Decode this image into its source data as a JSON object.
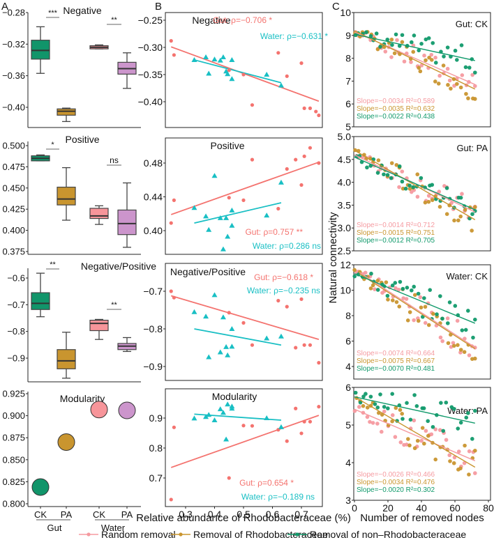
{
  "panel_labels": {
    "a": "A",
    "b": "B",
    "c": "C"
  },
  "colors": {
    "gut_ck": "#11956a",
    "gut_pa": "#c9952f",
    "water_ck": "#f7959a",
    "water_pa": "#cc95cc",
    "gut_line": "#f4736f",
    "water_line": "#19bfc4",
    "random": "#f59aa0",
    "rhodo": "#c9952f",
    "nonrhodo": "#119a6b"
  },
  "chart_data": [
    {
      "id": "A1",
      "type": "box",
      "title": "Negative",
      "ylim": [
        -0.42,
        -0.28
      ],
      "yticks": [
        -0.28,
        -0.32,
        -0.36,
        -0.4
      ],
      "ytick_labels": [
        "−0.28",
        "−0.32",
        "−0.36",
        "−0.40"
      ],
      "groups": [
        {
          "name": "Gut CK",
          "min": -0.298,
          "q1": -0.339,
          "median": -0.328,
          "q3": -0.315,
          "max": -0.298,
          "low": -0.357
        },
        {
          "name": "Gut PA",
          "min": -0.418,
          "q1": -0.41,
          "median": -0.405,
          "q3": -0.402,
          "max": -0.401
        },
        {
          "name": "Water CK",
          "min": -0.326,
          "q1": -0.326,
          "median": -0.324,
          "q3": -0.322,
          "max": -0.321
        },
        {
          "name": "Water PA",
          "min": -0.376,
          "q1": -0.358,
          "median": -0.351,
          "q3": -0.343,
          "max": -0.331
        }
      ],
      "significance": [
        {
          "pair": "Gut",
          "label": "***"
        },
        {
          "pair": "Water",
          "label": "**"
        }
      ]
    },
    {
      "id": "A2",
      "type": "box",
      "title": "Positive",
      "ylim": [
        0.375,
        0.5
      ],
      "yticks": [
        0.5,
        0.475,
        0.45,
        0.425,
        0.4,
        0.375
      ],
      "ytick_labels": [
        "0.500",
        "0.475",
        "0.450",
        "0.425",
        "0.400",
        "0.375"
      ],
      "groups": [
        {
          "name": "Gut CK",
          "low": 0.482,
          "q1": 0.482,
          "median": 0.485,
          "q3": 0.488,
          "high": 0.489
        },
        {
          "name": "Gut PA",
          "low": 0.412,
          "q1": 0.43,
          "median": 0.437,
          "q3": 0.451,
          "high": 0.474
        },
        {
          "name": "Water CK",
          "low": 0.407,
          "q1": 0.414,
          "median": 0.417,
          "q3": 0.426,
          "high": 0.429
        },
        {
          "name": "Water PA",
          "low": 0.38,
          "q1": 0.395,
          "median": 0.408,
          "q3": 0.424,
          "high": 0.456
        }
      ],
      "significance": [
        {
          "pair": "Gut",
          "label": "*"
        },
        {
          "pair": "Water",
          "label": "ns"
        }
      ]
    },
    {
      "id": "A3",
      "type": "box",
      "title": "Negative/Positive",
      "ylim": [
        -0.97,
        -0.56
      ],
      "yticks": [
        -0.6,
        -0.7,
        -0.8,
        -0.9
      ],
      "ytick_labels": [
        "−0.6",
        "−0.7",
        "−0.8",
        "−0.9"
      ],
      "groups": [
        {
          "name": "Gut CK",
          "low": -0.745,
          "q1": -0.718,
          "median": -0.695,
          "q3": -0.655,
          "high": -0.582
        },
        {
          "name": "Gut PA",
          "low": -0.975,
          "q1": -0.94,
          "median": -0.91,
          "q3": -0.868,
          "high": -0.803
        },
        {
          "name": "Water CK",
          "low": -0.83,
          "q1": -0.797,
          "median": -0.77,
          "q3": -0.758,
          "high": -0.755
        },
        {
          "name": "Water PA",
          "low": -0.875,
          "q1": -0.868,
          "median": -0.855,
          "q3": -0.845,
          "high": -0.823
        }
      ],
      "significance": [
        {
          "pair": "Gut",
          "label": "**"
        },
        {
          "pair": "Water",
          "label": "**"
        }
      ]
    },
    {
      "id": "A4",
      "type": "scatter",
      "title": "Modularity",
      "ylim": [
        0.8,
        0.925
      ],
      "yticks": [
        0.925,
        0.9,
        0.875,
        0.85,
        0.825,
        0.8
      ],
      "ytick_labels": [
        "0.925",
        "0.900",
        "0.875",
        "0.850",
        "0.825",
        "0.800"
      ],
      "groups": [
        {
          "name": "Gut CK",
          "value": 0.819
        },
        {
          "name": "Gut PA",
          "value": 0.87
        },
        {
          "name": "Water CK",
          "value": 0.907
        },
        {
          "name": "Water PA",
          "value": 0.906
        }
      ],
      "xtick_labels": [
        "CK",
        "PA",
        "CK",
        "PA"
      ],
      "xgroup_labels": [
        "Gut",
        "Water"
      ]
    },
    {
      "id": "B1",
      "type": "scatter",
      "title": "Negative",
      "xlim": [
        0.245,
        0.765
      ],
      "ylim": [
        -0.44,
        -0.24
      ],
      "yticks": [
        -0.25,
        -0.3,
        -0.35,
        -0.4
      ],
      "ytick_labels": [
        "−0.25",
        "−0.30",
        "−0.35",
        "−0.40"
      ],
      "annotations": [
        "Gut: ρ=−0.706 *",
        "Water: ρ=−0.631 *"
      ],
      "gut": {
        "points": [
          [
            0.25,
            -0.288
          ],
          [
            0.26,
            -0.314
          ],
          [
            0.45,
            -0.342
          ],
          [
            0.5,
            -0.35
          ],
          [
            0.53,
            -0.406
          ],
          [
            0.62,
            -0.31
          ],
          [
            0.65,
            -0.353
          ],
          [
            0.7,
            -0.329
          ],
          [
            0.71,
            -0.412
          ],
          [
            0.73,
            -0.412
          ],
          [
            0.75,
            -0.418
          ],
          [
            0.76,
            -0.425
          ]
        ],
        "fit": [
          [
            0.25,
            -0.299
          ],
          [
            0.76,
            -0.399
          ]
        ]
      },
      "water": {
        "points": [
          [
            0.33,
            -0.323
          ],
          [
            0.37,
            -0.318
          ],
          [
            0.38,
            -0.348
          ],
          [
            0.4,
            -0.322
          ],
          [
            0.42,
            -0.324
          ],
          [
            0.43,
            -0.318
          ],
          [
            0.44,
            -0.344
          ],
          [
            0.445,
            -0.349
          ],
          [
            0.46,
            -0.323
          ],
          [
            0.46,
            -0.358
          ],
          [
            0.58,
            -0.35
          ],
          [
            0.63,
            -0.37
          ]
        ],
        "fit": [
          [
            0.33,
            -0.323
          ],
          [
            0.63,
            -0.365
          ]
        ]
      }
    },
    {
      "id": "B2",
      "type": "scatter",
      "title": "Positive",
      "xlim": [
        0.245,
        0.765
      ],
      "ylim": [
        0.375,
        0.505
      ],
      "yticks": [
        0.48,
        0.44,
        0.4
      ],
      "ytick_labels": [
        "0.48",
        "0.44",
        "0.40"
      ],
      "annotations": [
        "Gut: ρ=0.757 **",
        "Water: ρ=0.286 ns"
      ],
      "gut": {
        "points": [
          [
            0.25,
            0.409
          ],
          [
            0.26,
            0.436
          ],
          [
            0.45,
            0.439
          ],
          [
            0.5,
            0.436
          ],
          [
            0.53,
            0.484
          ],
          [
            0.62,
            0.426
          ],
          [
            0.65,
            0.473
          ],
          [
            0.68,
            0.484
          ],
          [
            0.7,
            0.454
          ],
          [
            0.71,
            0.488
          ],
          [
            0.73,
            0.498
          ],
          [
            0.76,
            0.48
          ]
        ],
        "fit": [
          [
            0.25,
            0.419
          ],
          [
            0.76,
            0.481
          ]
        ]
      },
      "water": {
        "points": [
          [
            0.33,
            0.427
          ],
          [
            0.37,
            0.417
          ],
          [
            0.38,
            0.401
          ],
          [
            0.4,
            0.465
          ],
          [
            0.42,
            0.415
          ],
          [
            0.43,
            0.378
          ],
          [
            0.44,
            0.415
          ],
          [
            0.445,
            0.393
          ],
          [
            0.46,
            0.424
          ],
          [
            0.46,
            0.406
          ],
          [
            0.58,
            0.418
          ],
          [
            0.63,
            0.457
          ]
        ],
        "fit": [
          [
            0.33,
            0.409
          ],
          [
            0.63,
            0.433
          ]
        ]
      }
    },
    {
      "id": "B3",
      "type": "scatter",
      "title": "Negative/Positive",
      "xlim": [
        0.245,
        0.765
      ],
      "ylim": [
        -0.95,
        -0.63
      ],
      "yticks": [
        -0.7,
        -0.8,
        -0.9
      ],
      "ytick_labels": [
        "−0.7",
        "−0.8",
        "−0.9"
      ],
      "annotations": [
        "Gut: ρ=−0.618 *",
        "Water: ρ=−0.235 ns"
      ],
      "gut": {
        "points": [
          [
            0.25,
            -0.7
          ],
          [
            0.26,
            -0.717
          ],
          [
            0.45,
            -0.757
          ],
          [
            0.5,
            -0.784
          ],
          [
            0.53,
            -0.843
          ],
          [
            0.62,
            -0.725
          ],
          [
            0.65,
            -0.741
          ],
          [
            0.68,
            -0.85
          ],
          [
            0.7,
            -0.721
          ],
          [
            0.71,
            -0.843
          ],
          [
            0.73,
            -0.843
          ],
          [
            0.76,
            -0.89
          ]
        ],
        "fit": [
          [
            0.25,
            -0.712
          ],
          [
            0.76,
            -0.828
          ]
        ]
      },
      "water": {
        "points": [
          [
            0.33,
            -0.755
          ],
          [
            0.37,
            -0.767
          ],
          [
            0.38,
            -0.875
          ],
          [
            0.4,
            -0.71
          ],
          [
            0.42,
            -0.862
          ],
          [
            0.43,
            -0.769
          ],
          [
            0.44,
            -0.848
          ],
          [
            0.445,
            -0.87
          ],
          [
            0.46,
            -0.8
          ],
          [
            0.46,
            -0.847
          ],
          [
            0.58,
            -0.825
          ],
          [
            0.63,
            -0.82
          ]
        ],
        "fit": [
          [
            0.33,
            -0.8
          ],
          [
            0.63,
            -0.843
          ]
        ]
      }
    },
    {
      "id": "B4",
      "type": "scatter",
      "title": "Modularity",
      "xlim": [
        0.245,
        0.765
      ],
      "ylim": [
        0.62,
        0.98
      ],
      "yticks": [
        0.9,
        0.8,
        0.7
      ],
      "ytick_labels": [
        "0.9",
        "0.8",
        "0.7"
      ],
      "annotations": [
        "Gut: ρ=0.654 *",
        "Water: ρ=−0.189 ns"
      ],
      "gut": {
        "points": [
          [
            0.25,
            0.628
          ],
          [
            0.26,
            0.869
          ],
          [
            0.45,
            0.7
          ],
          [
            0.5,
            0.875
          ],
          [
            0.53,
            0.874
          ],
          [
            0.62,
            0.861
          ],
          [
            0.65,
            0.823
          ],
          [
            0.68,
            0.932
          ],
          [
            0.7,
            0.849
          ],
          [
            0.71,
            0.888
          ],
          [
            0.73,
            0.888
          ],
          [
            0.76,
            0.938
          ]
        ],
        "fit": [
          [
            0.25,
            0.735
          ],
          [
            0.76,
            0.909
          ]
        ]
      },
      "water": {
        "points": [
          [
            0.33,
            0.899
          ],
          [
            0.37,
            0.904
          ],
          [
            0.38,
            0.911
          ],
          [
            0.4,
            0.893
          ],
          [
            0.42,
            0.93
          ],
          [
            0.43,
            0.918
          ],
          [
            0.44,
            0.829
          ],
          [
            0.445,
            0.946
          ],
          [
            0.46,
            0.939
          ],
          [
            0.46,
            0.932
          ],
          [
            0.58,
            0.9
          ],
          [
            0.63,
            0.87
          ]
        ],
        "fit": [
          [
            0.33,
            0.913
          ],
          [
            0.63,
            0.893
          ]
        ]
      }
    },
    {
      "id": "C1",
      "type": "scatter",
      "title": "Gut: CK",
      "xlim": [
        0,
        80
      ],
      "ylim": [
        5,
        10
      ],
      "yticks": [
        10,
        9,
        8,
        7,
        6,
        5
      ],
      "ytick_labels": [
        "10",
        "9",
        "8",
        "7",
        "6",
        "5"
      ],
      "fits": {
        "random": [
          [
            0,
            9.15
          ],
          [
            72,
            6.85
          ]
        ],
        "rhodo": [
          [
            0,
            9.2
          ],
          [
            72,
            6.65
          ]
        ],
        "nonrhodo": [
          [
            0,
            9.05
          ],
          [
            72,
            7.9
          ]
        ]
      },
      "stats": [
        "Slope=−0.0034 R²=0.589",
        "Slope=−0.0035 R²=0.632",
        "Slope=−0.0022 R²=0.438"
      ]
    },
    {
      "id": "C2",
      "type": "scatter",
      "title": "Gut: PA",
      "xlim": [
        0,
        80
      ],
      "ylim": [
        2.5,
        5.0
      ],
      "yticks": [
        5.0,
        4.5,
        4.0,
        3.5,
        3.0,
        2.5
      ],
      "ytick_labels": [
        "5.0",
        "4.5",
        "4.0",
        "3.5",
        "3.0",
        "2.5"
      ],
      "fits": {
        "random": [
          [
            0,
            4.6
          ],
          [
            72,
            3.35
          ]
        ],
        "rhodo": [
          [
            0,
            4.7
          ],
          [
            72,
            3.18
          ]
        ],
        "nonrhodo": [
          [
            0,
            4.55
          ],
          [
            72,
            3.4
          ]
        ]
      },
      "stats": [
        "Slope=−0.0014 R²=0.712",
        "Slope=−0.0015 R²=0.751",
        "Slope=−0.0012 R²=0.705"
      ]
    },
    {
      "id": "C3",
      "type": "scatter",
      "title": "Water: CK",
      "xlim": [
        0,
        80
      ],
      "ylim": [
        3,
        12
      ],
      "yticks": [
        12,
        10,
        8,
        6,
        4
      ],
      "ytick_labels": [
        "12",
        "10",
        "8",
        "6",
        "4"
      ],
      "fits": {
        "random": [
          [
            3,
            11.4
          ],
          [
            72,
            5.5
          ]
        ],
        "rhodo": [
          [
            3,
            11.3
          ],
          [
            72,
            5.4
          ]
        ],
        "nonrhodo": [
          [
            0,
            11.3
          ],
          [
            72,
            7.4
          ]
        ]
      },
      "stats": [
        "Slope=−0.0074 R²=0.664",
        "Slope=−0.0075 R²=0.667",
        "Slope=−0.0070 R²=0.481"
      ]
    },
    {
      "id": "C4",
      "type": "scatter",
      "title": "Water: PA",
      "xlim": [
        0,
        80
      ],
      "ylim": [
        3,
        6
      ],
      "yticks": [
        6,
        5,
        4,
        3
      ],
      "ytick_labels": [
        "6",
        "5",
        "4",
        "3"
      ],
      "xticks": [
        0,
        20,
        40,
        60,
        80
      ],
      "xtick_labels": [
        "0",
        "20",
        "40",
        "60",
        "80"
      ],
      "fits": {
        "random": [
          [
            0,
            5.42
          ],
          [
            72,
            4.05
          ]
        ],
        "rhodo": [
          [
            0,
            5.75
          ],
          [
            72,
            3.88
          ]
        ],
        "nonrhodo": [
          [
            0,
            5.75
          ],
          [
            72,
            5.05
          ]
        ]
      },
      "stats": [
        "Slope=−0.0026 R²=0.466",
        "Slope=−0.0034 R²=0.476",
        "Slope=−0.0020 R²=0.302"
      ]
    }
  ],
  "axes": {
    "b_xticks": [
      0.3,
      0.4,
      0.5,
      0.6,
      0.7
    ],
    "b_xtick_labels": [
      "0.3",
      "0.4",
      "0.5",
      "0.6",
      "0.7"
    ],
    "b_xlabel": "Relative abundance of Rhodobacteraceae (%)",
    "c_xlabel": "Number of removed nodes",
    "c_ylabel": "Natural connectivity"
  },
  "legend": {
    "placement": "bottom",
    "items": [
      {
        "key": "random",
        "label": "Random removal"
      },
      {
        "key": "rhodo",
        "label": "Removal of Rhodobacteraceae"
      },
      {
        "key": "nonrhodo",
        "label": "Removal of non–Rhodobacteraceae"
      }
    ]
  }
}
